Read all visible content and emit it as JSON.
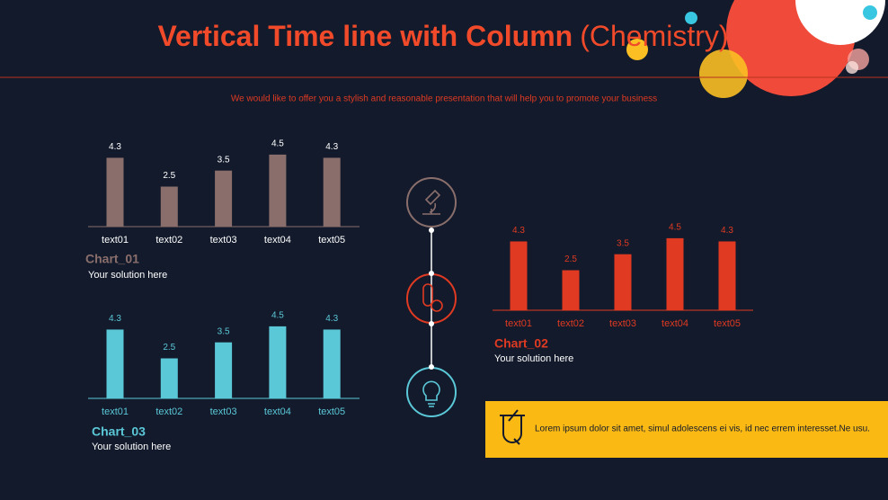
{
  "title": "Vertical Time line with Column",
  "title_note": "(Chemistry)",
  "subtitle": "We would like to offer you a stylish and reasonable presentation that will help you to promote your business",
  "callout": "Lorem ipsum dolor sit amet, simul adolescens ei vis, id nec errem interesset.Ne usu.",
  "chart_data": [
    {
      "type": "bar",
      "title": "Chart_01",
      "subtitle": "Your solution here",
      "categories": [
        "text01",
        "text02",
        "text03",
        "text04",
        "text05"
      ],
      "values": [
        4.3,
        2.5,
        3.5,
        4.5,
        4.3
      ],
      "color": "#8a6e6c",
      "label_color": "#ffffff"
    },
    {
      "type": "bar",
      "title": "Chart_02",
      "subtitle": "Your solution here",
      "categories": [
        "text01",
        "text02",
        "text03",
        "text04",
        "text05"
      ],
      "values": [
        4.3,
        2.5,
        3.5,
        4.5,
        4.3
      ],
      "color": "#e03a22",
      "label_color": "#e03a22"
    },
    {
      "type": "bar",
      "title": "Chart_03",
      "subtitle": "Your solution here",
      "categories": [
        "text01",
        "text02",
        "text03",
        "text04",
        "text05"
      ],
      "values": [
        4.3,
        2.5,
        3.5,
        4.5,
        4.3
      ],
      "color": "#5bc8d8",
      "label_color": "#5bc8d8"
    }
  ]
}
